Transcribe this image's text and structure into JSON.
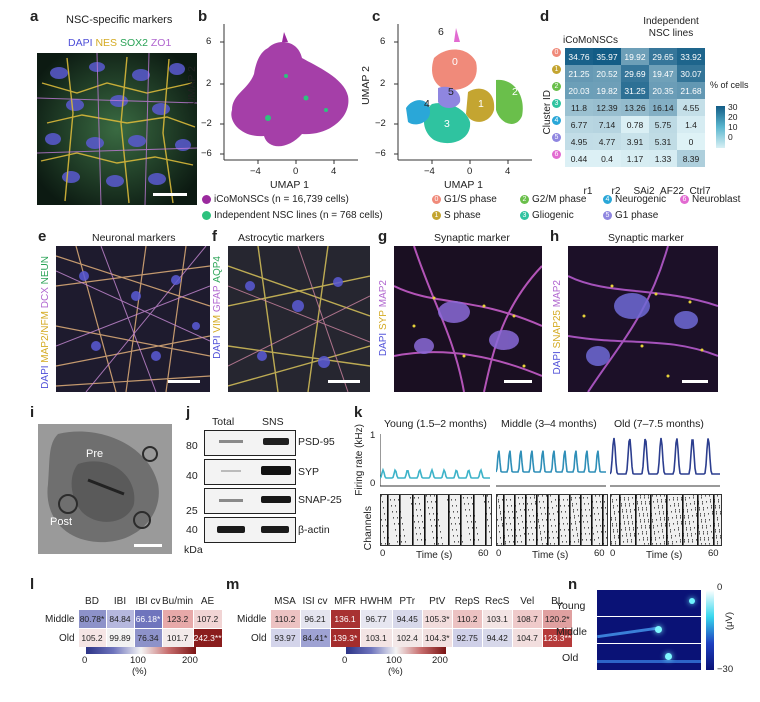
{
  "panels": {
    "a": "a",
    "b": "b",
    "c": "c",
    "d": "d",
    "e": "e",
    "f": "f",
    "g": "g",
    "h": "h",
    "i": "i",
    "j": "j",
    "k": "k",
    "l": "l",
    "m": "m",
    "n": "n"
  },
  "a": {
    "title": "NSC-specific markers",
    "stains": [
      "DAPI",
      "NES",
      "SOX2",
      "ZO1"
    ],
    "stain_colors": [
      "#6b6bff",
      "#e8c23a",
      "#3fbf6b",
      "#c07bd8"
    ]
  },
  "umap": {
    "xlabel": "UMAP 1",
    "ylabel": "UMAP 2",
    "xticks": [
      "−4",
      "0",
      "4"
    ],
    "yticks": [
      "6",
      "2",
      "−2",
      "−6"
    ],
    "clusters": [
      "0",
      "1",
      "2",
      "3",
      "4",
      "5",
      "6"
    ]
  },
  "legend_b": [
    {
      "label": "iCoMoNSCs (n = 16,739 cells)",
      "color": "#9b2a9e"
    },
    {
      "label": "Independent NSC lines (n = 768 cells)",
      "color": "#2ec27e"
    }
  ],
  "legend_c": [
    {
      "num": "0",
      "label": "G1/S phase",
      "color": "#f08a7a"
    },
    {
      "num": "1",
      "label": "S phase",
      "color": "#c4a531"
    },
    {
      "num": "2",
      "label": "G2/M phase",
      "color": "#6abf4b"
    },
    {
      "num": "3",
      "label": "Gliogenic",
      "color": "#2fc3a0"
    },
    {
      "num": "4",
      "label": "Neurogenic",
      "color": "#2aa7d8"
    },
    {
      "num": "5",
      "label": "G1 phase",
      "color": "#8f86e0"
    },
    {
      "num": "6",
      "label": "Neuroblast",
      "color": "#e26ad1"
    }
  ],
  "d": {
    "col_group1": "iCoMoNSCs",
    "col_group2": "Independent NSC lines",
    "columns": [
      "r1",
      "r2",
      "SAi2",
      "AF22",
      "Ctrl7"
    ],
    "ylabel": "Cluster ID",
    "rows": [
      {
        "id": "0",
        "values": [
          "34.76",
          "35.97",
          "19.92",
          "29.65",
          "33.92"
        ]
      },
      {
        "id": "1",
        "values": [
          "21.25",
          "20.52",
          "29.69",
          "19.47",
          "30.07"
        ]
      },
      {
        "id": "2",
        "values": [
          "20.03",
          "19.82",
          "31.25",
          "20.35",
          "21.68"
        ]
      },
      {
        "id": "3",
        "values": [
          "11.8",
          "12.39",
          "13.26",
          "16.14",
          "4.55"
        ]
      },
      {
        "id": "4",
        "values": [
          "6.77",
          "7.14",
          "0.78",
          "5.75",
          "1.4"
        ]
      },
      {
        "id": "5",
        "values": [
          "4.95",
          "4.77",
          "3.91",
          "5.31",
          "0"
        ]
      },
      {
        "id": "6",
        "values": [
          "0.44",
          "0.4",
          "1.17",
          "1.33",
          "8.39"
        ]
      }
    ],
    "colorbar_title": "% of cells",
    "colorbar_ticks": [
      "30",
      "20",
      "10",
      "0"
    ]
  },
  "e": {
    "title": "Neuronal markers",
    "stains": [
      "DAPI",
      "MAP2/NFM",
      "DCX",
      "NEUN"
    ],
    "stain_colors": [
      "#6b6bff",
      "#e8c23a",
      "#c07bd8",
      "#3fbf6b"
    ]
  },
  "f": {
    "title": "Astrocytic markers",
    "stains": [
      "DAPI",
      "VIM",
      "GFAP",
      "AQP4"
    ],
    "stain_colors": [
      "#6b6bff",
      "#e8c23a",
      "#c07bd8",
      "#3fbf6b"
    ]
  },
  "g": {
    "title": "Synaptic marker",
    "stains": [
      "DAPI",
      "SYP",
      "MAP2"
    ],
    "stain_colors": [
      "#6b6bff",
      "#e8c23a",
      "#c07bd8"
    ]
  },
  "h": {
    "title": "Synaptic marker",
    "stains": [
      "DAPI",
      "SNAP25",
      "MAP2"
    ],
    "stain_colors": [
      "#6b6bff",
      "#e8c23a",
      "#c07bd8"
    ]
  },
  "i": {
    "pre": "Pre",
    "post": "Post"
  },
  "j": {
    "lanes": [
      "Total",
      "SNS"
    ],
    "blots": [
      {
        "mw": "80",
        "name": "PSD-95"
      },
      {
        "mw": "40",
        "name": "SYP"
      },
      {
        "mw": "25",
        "name": "SNAP-25"
      },
      {
        "mw": "40",
        "name": "β-actin"
      }
    ],
    "unit": "kDa"
  },
  "k": {
    "groups": [
      {
        "label": "Young (1.5–2 months)",
        "color": "#3db3c9"
      },
      {
        "label": "Middle (3–4 months)",
        "color": "#2f8fb8"
      },
      {
        "label": "Old (7–7.5 months)",
        "color": "#2c3e8f"
      }
    ],
    "ylabel": "Firing rate (kHz)",
    "yticks": [
      "1",
      "0"
    ],
    "raster_ylabel": "Channels",
    "xlabel": "Time (s)",
    "xticks": [
      "0",
      "60"
    ]
  },
  "l": {
    "columns": [
      "BD",
      "IBI",
      "IBI cv",
      "Bu/min",
      "AE"
    ],
    "rows": [
      {
        "label": "Middle",
        "cells": [
          {
            "v": "80.78*",
            "c": "#8d92c9"
          },
          {
            "v": "84.84",
            "c": "#b6b8de"
          },
          {
            "v": "66.18*",
            "c": "#6f75bd"
          },
          {
            "v": "123.2",
            "c": "#e7a9a9"
          },
          {
            "v": "107.2",
            "c": "#f1d4d4"
          }
        ]
      },
      {
        "label": "Old",
        "cells": [
          {
            "v": "105.2",
            "c": "#f5e5e5"
          },
          {
            "v": "99.89",
            "c": "#f2f2f2"
          },
          {
            "v": "76.34",
            "c": "#8d92c9"
          },
          {
            "v": "101.7",
            "c": "#f3eaea"
          },
          {
            "v": "242.3**",
            "c": "#8a1d1d"
          }
        ]
      }
    ],
    "colorbar_ticks": [
      "0",
      "100",
      "200"
    ],
    "colorbar_unit": "(%)"
  },
  "m": {
    "columns": [
      "MSA",
      "ISI cv",
      "MFR",
      "HWHM",
      "PTr",
      "PtV",
      "RepS",
      "RecS",
      "Vel",
      "BL"
    ],
    "rows": [
      {
        "label": "Middle",
        "cells": [
          {
            "v": "110.2",
            "c": "#ecc2c2"
          },
          {
            "v": "96.21",
            "c": "#e4e4ef"
          },
          {
            "v": "136.1",
            "c": "#a83232"
          },
          {
            "v": "96.77",
            "c": "#e6e6f0"
          },
          {
            "v": "94.45",
            "c": "#d7d8ea"
          },
          {
            "v": "105.3*",
            "c": "#f2dcdc"
          },
          {
            "v": "110.2",
            "c": "#ecc2c2"
          },
          {
            "v": "103.1",
            "c": "#f3e4e4"
          },
          {
            "v": "108.7",
            "c": "#efcaca"
          },
          {
            "v": "120.2*",
            "c": "#e0a0a0"
          }
        ]
      },
      {
        "label": "Old",
        "cells": [
          {
            "v": "93.97",
            "c": "#d3d4ea"
          },
          {
            "v": "84.41*",
            "c": "#9ea2d3"
          },
          {
            "v": "139.3*",
            "c": "#a42d2d"
          },
          {
            "v": "103.1",
            "c": "#f3e4e4"
          },
          {
            "v": "102.4",
            "c": "#f3e8e8"
          },
          {
            "v": "104.3*",
            "c": "#f2e0e0"
          },
          {
            "v": "92.75",
            "c": "#cfd0e8"
          },
          {
            "v": "94.42",
            "c": "#d7d8ea"
          },
          {
            "v": "104.7",
            "c": "#f2dede"
          },
          {
            "v": "123.3**",
            "c": "#b53a3a"
          }
        ]
      }
    ],
    "colorbar_ticks": [
      "0",
      "100",
      "200"
    ],
    "colorbar_unit": "(%)"
  },
  "n": {
    "rows": [
      "Young",
      "Middle",
      "Old"
    ],
    "colorbar_ticks": [
      "0",
      "−30"
    ],
    "colorbar_unit": "(μV)"
  }
}
